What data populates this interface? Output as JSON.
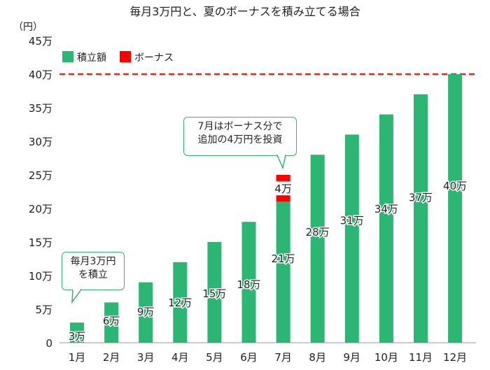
{
  "chart_data": {
    "type": "bar",
    "title": "毎月3万円と、夏のボーナスを積み立てる場合",
    "unit_label": "（円）",
    "categories": [
      "1月",
      "2月",
      "3月",
      "4月",
      "5月",
      "6月",
      "7月",
      "8月",
      "9月",
      "10月",
      "11月",
      "12月"
    ],
    "series": [
      {
        "name": "積立額",
        "color": "#2bb673",
        "values": [
          3,
          6,
          9,
          12,
          15,
          18,
          21,
          28,
          31,
          34,
          37,
          40
        ],
        "labels": [
          "3万",
          "6万",
          "9万",
          "12万",
          "15万",
          "18万",
          "21万",
          "28万",
          "31万",
          "34万",
          "37万",
          "40万"
        ]
      },
      {
        "name": "ボーナス",
        "color": "#ff0000",
        "values": [
          0,
          0,
          0,
          0,
          0,
          0,
          4,
          0,
          0,
          0,
          0,
          0
        ],
        "labels": [
          "",
          "",
          "",
          "",
          "",
          "",
          "4万",
          "",
          "",
          "",
          "",
          ""
        ]
      }
    ],
    "stacked": true,
    "yticks": [
      0,
      5,
      10,
      15,
      20,
      25,
      30,
      35,
      40,
      45
    ],
    "ytick_labels": [
      "0",
      "5万",
      "10万",
      "15万",
      "20万",
      "25万",
      "30万",
      "35万",
      "40万",
      "45万"
    ],
    "ylim": [
      0,
      45
    ],
    "reference_line": {
      "value": 40,
      "color": "#e8281e",
      "style": "dashed"
    },
    "legend_position": "top-left",
    "grid": false,
    "annotations": [
      {
        "id": "monthly",
        "lines": [
          "毎月3万円",
          "を積立"
        ],
        "target_category": "1月"
      },
      {
        "id": "bonus",
        "lines": [
          "7月はボーナス分で",
          "追加の4万円を投資"
        ],
        "target_category": "7月"
      }
    ]
  }
}
